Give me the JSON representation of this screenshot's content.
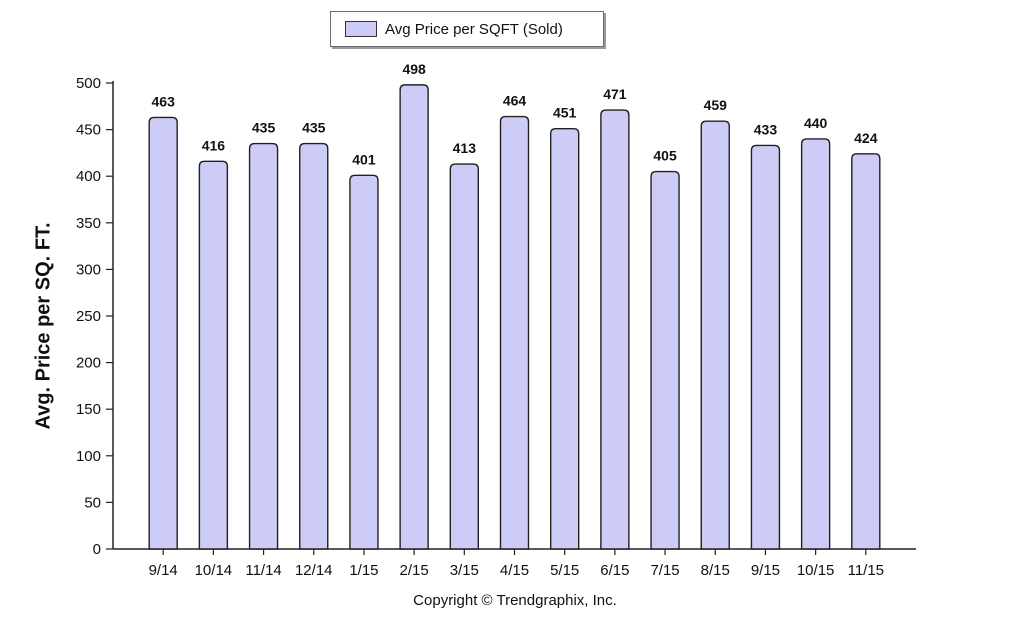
{
  "chart_data": {
    "type": "bar",
    "categories": [
      "9/14",
      "10/14",
      "11/14",
      "12/14",
      "1/15",
      "2/15",
      "3/15",
      "4/15",
      "5/15",
      "6/15",
      "7/15",
      "8/15",
      "9/15",
      "10/15",
      "11/15"
    ],
    "series": [
      {
        "name": "Avg Price per SQFT (Sold)",
        "values": [
          463,
          416,
          435,
          435,
          401,
          498,
          413,
          464,
          451,
          471,
          405,
          459,
          433,
          440,
          424
        ]
      }
    ],
    "title": "",
    "xlabel": "",
    "ylabel": "Avg. Price per SQ. FT.",
    "ylim": [
      0,
      500
    ],
    "yticks": [
      0,
      50,
      100,
      150,
      200,
      250,
      300,
      350,
      400,
      450,
      500
    ],
    "legend_position": "top-center",
    "grid": false,
    "bar_color": "#ccccf6",
    "bar_border_color": "#222222"
  },
  "footer": {
    "copyright": "Copyright © Trendgraphix, Inc."
  }
}
